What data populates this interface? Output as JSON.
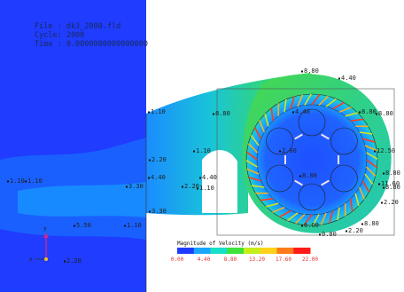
{
  "header": {
    "file_line": "File : dk3_2000.fld",
    "cycle_line": "Cycle: 2000",
    "time_line": "Time : 0.0000000000000000"
  },
  "chart_data": {
    "type": "heatmap",
    "colorbar": {
      "title": "Magnitude of Velocity (m/s)",
      "ticks": [
        "0.00",
        "4.40",
        "8.80",
        "13.20",
        "17.60",
        "22.00"
      ],
      "range": [
        0,
        22
      ],
      "colors": [
        "#1e3cff",
        "#1aa6ff",
        "#18e0c8",
        "#3ee23a",
        "#c6ee1a",
        "#ffd21a",
        "#ff7a1a",
        "#ff1a1a"
      ]
    },
    "annotations": [
      {
        "text": "1.10"
      },
      {
        "text": "1.10"
      },
      {
        "text": "3.30"
      },
      {
        "text": "5.50"
      },
      {
        "text": "2.20"
      },
      {
        "text": "1.10"
      },
      {
        "text": "2.20"
      },
      {
        "text": "4.40"
      },
      {
        "text": "2.20"
      },
      {
        "text": "1.10"
      },
      {
        "text": "3.30"
      },
      {
        "text": "1.10"
      },
      {
        "text": "8.80"
      },
      {
        "text": "8.80"
      },
      {
        "text": "4.40"
      },
      {
        "text": "4.40"
      },
      {
        "text": "8.80"
      },
      {
        "text": "2.00"
      },
      {
        "text": "8.80"
      },
      {
        "text": "6.60"
      },
      {
        "text": "12.50"
      },
      {
        "text": "11.60"
      },
      {
        "text": "8.80"
      },
      {
        "text": "2.20"
      },
      {
        "text": "8.80"
      },
      {
        "text": "2.20"
      },
      {
        "text": "8.80"
      },
      {
        "text": "1.10"
      },
      {
        "text": "4.40"
      },
      {
        "text": "0.80"
      },
      {
        "text": "8.80"
      }
    ],
    "axis_triad": {
      "x": "x",
      "y": "y"
    }
  }
}
